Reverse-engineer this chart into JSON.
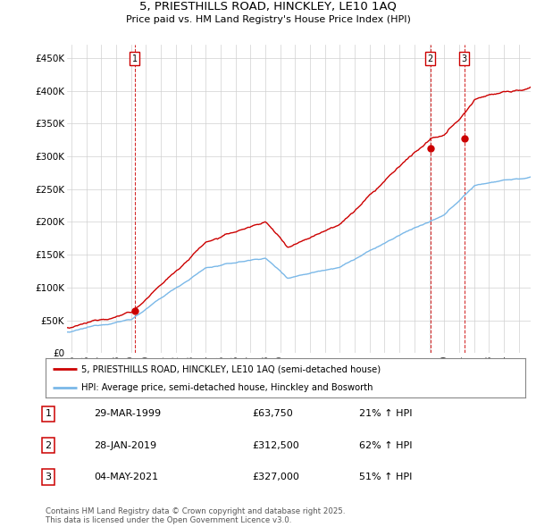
{
  "title1": "5, PRIESTHILLS ROAD, HINCKLEY, LE10 1AQ",
  "title2": "Price paid vs. HM Land Registry's House Price Index (HPI)",
  "ylim": [
    0,
    470000
  ],
  "yticks": [
    0,
    50000,
    100000,
    150000,
    200000,
    250000,
    300000,
    350000,
    400000,
    450000
  ],
  "ytick_labels": [
    "£0",
    "£50K",
    "£100K",
    "£150K",
    "£200K",
    "£250K",
    "£300K",
    "£350K",
    "£400K",
    "£450K"
  ],
  "hpi_color": "#7ab8e8",
  "price_color": "#cc0000",
  "marker_color": "#cc0000",
  "sale1": {
    "year": 1999.23,
    "price": 63750,
    "label": "1"
  },
  "sale2": {
    "year": 2019.08,
    "price": 312500,
    "label": "2"
  },
  "sale3": {
    "year": 2021.34,
    "price": 327000,
    "label": "3"
  },
  "legend_price_label": "5, PRIESTHILLS ROAD, HINCKLEY, LE10 1AQ (semi-detached house)",
  "legend_hpi_label": "HPI: Average price, semi-detached house, Hinckley and Bosworth",
  "table_rows": [
    {
      "num": "1",
      "date": "29-MAR-1999",
      "price": "£63,750",
      "change": "21% ↑ HPI"
    },
    {
      "num": "2",
      "date": "28-JAN-2019",
      "price": "£312,500",
      "change": "62% ↑ HPI"
    },
    {
      "num": "3",
      "date": "04-MAY-2021",
      "price": "£327,000",
      "change": "51% ↑ HPI"
    }
  ],
  "footnote": "Contains HM Land Registry data © Crown copyright and database right 2025.\nThis data is licensed under the Open Government Licence v3.0.",
  "background_color": "#ffffff",
  "grid_color": "#d0d0d0",
  "xlim_start": 1994.7,
  "xlim_end": 2025.8
}
